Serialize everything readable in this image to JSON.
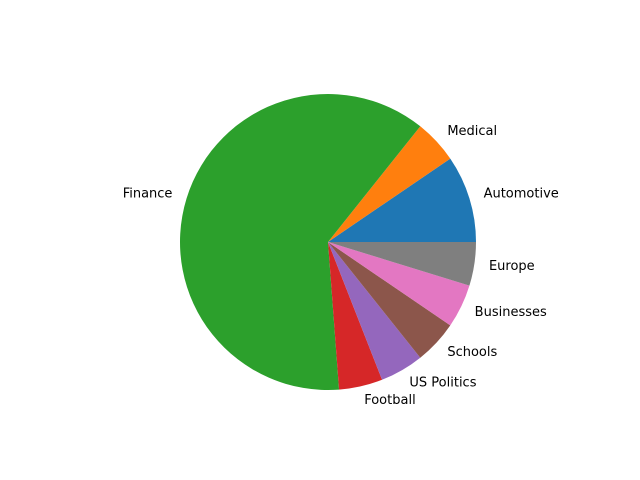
{
  "chart_data": {
    "type": "pie",
    "title": "",
    "categories": [
      "Automotive",
      "Medical",
      "Finance",
      "Football",
      "US Politics",
      "Schools",
      "Businesses",
      "Europe"
    ],
    "values": [
      10,
      5,
      65,
      5,
      5,
      5,
      5,
      5
    ],
    "colors": [
      "#1f77b4",
      "#ff7f0e",
      "#2ca02c",
      "#d62728",
      "#9467bd",
      "#8c564b",
      "#e377c2",
      "#7f7f7f"
    ],
    "start_angle_deg": 0,
    "direction": "counterclockwise",
    "legend": "none"
  }
}
